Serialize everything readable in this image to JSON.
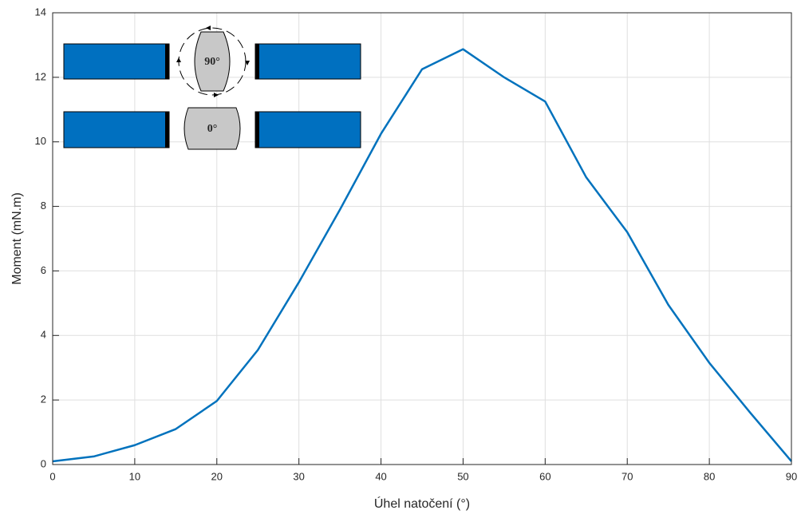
{
  "chart_data": {
    "type": "line",
    "x_label": "Úhel natočení (°)",
    "y_label": "Moment (mN.m)",
    "annotations": [
      "90°",
      "0°"
    ],
    "x": [
      0,
      5,
      10,
      15,
      20,
      25,
      30,
      35,
      40,
      45,
      50,
      55,
      60,
      65,
      70,
      75,
      80,
      85,
      90
    ],
    "series": [
      {
        "color": "#0072bd",
        "values": [
          0.1,
          0.25,
          0.6,
          1.1,
          1.97,
          3.55,
          5.65,
          7.9,
          10.25,
          12.25,
          12.87,
          12.0,
          11.25,
          8.9,
          7.2,
          4.95,
          3.15,
          1.6,
          0.1
        ]
      }
    ],
    "xlim": [
      0,
      90
    ],
    "xticks": [
      0,
      10,
      20,
      30,
      40,
      50,
      60,
      70,
      80,
      90
    ],
    "ylim": [
      0,
      14
    ],
    "yticks": [
      0,
      2,
      4,
      6,
      8,
      10,
      12,
      14
    ],
    "grid": true
  }
}
